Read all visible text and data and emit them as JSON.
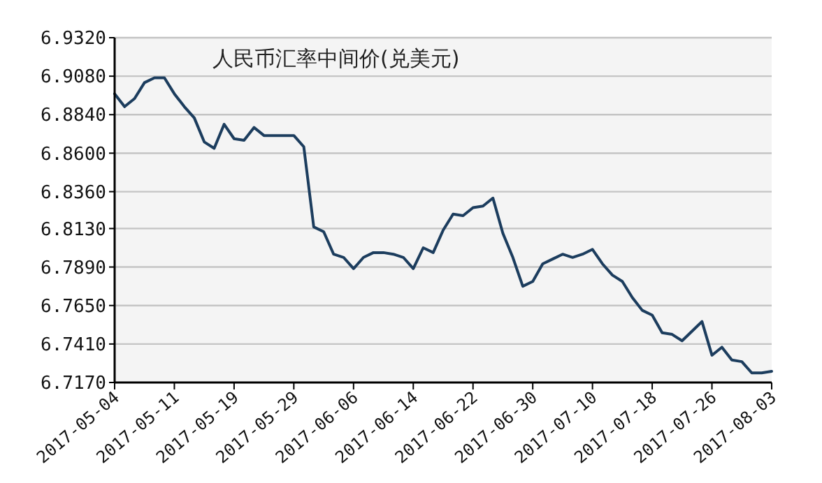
{
  "chart_data": {
    "type": "line",
    "title": "人民币汇率中间价(兑美元)",
    "categories": [
      "2017-05-04",
      null,
      null,
      null,
      null,
      null,
      "2017-05-11",
      null,
      null,
      null,
      null,
      null,
      "2017-05-19",
      null,
      null,
      null,
      null,
      null,
      "2017-05-29",
      null,
      null,
      null,
      null,
      null,
      "2017-06-06",
      null,
      null,
      null,
      null,
      null,
      "2017-06-14",
      null,
      null,
      null,
      null,
      null,
      "2017-06-22",
      null,
      null,
      null,
      null,
      null,
      "2017-06-30",
      null,
      null,
      null,
      null,
      null,
      "2017-07-10",
      null,
      null,
      null,
      null,
      null,
      "2017-07-18",
      null,
      null,
      null,
      null,
      null,
      "2017-07-26",
      null,
      null,
      null,
      null,
      null,
      "2017-08-03"
    ],
    "series": [
      {
        "color": "#1c3d5e",
        "values": [
          6.897,
          6.889,
          6.894,
          6.904,
          6.907,
          6.907,
          6.897,
          6.889,
          6.882,
          6.867,
          6.863,
          6.878,
          6.869,
          6.868,
          6.876,
          6.871,
          6.871,
          6.871,
          6.871,
          6.864,
          6.814,
          6.811,
          6.797,
          6.795,
          6.788,
          6.795,
          6.798,
          6.798,
          6.797,
          6.795,
          6.788,
          6.801,
          6.798,
          6.812,
          6.822,
          6.821,
          6.826,
          6.827,
          6.832,
          6.81,
          6.795,
          6.777,
          6.78,
          6.791,
          6.794,
          6.797,
          6.795,
          6.797,
          6.8,
          6.791,
          6.784,
          6.78,
          6.77,
          6.762,
          6.759,
          6.748,
          6.747,
          6.743,
          6.749,
          6.755,
          6.734,
          6.739,
          6.731,
          6.73,
          6.723,
          6.723,
          6.724
        ]
      }
    ],
    "ylim": [
      6.717,
      6.932
    ],
    "yticks": [
      {
        "value": 6.717,
        "label": "6.7170"
      },
      {
        "value": 6.741,
        "label": "6.7410"
      },
      {
        "value": 6.765,
        "label": "6.7650"
      },
      {
        "value": 6.789,
        "label": "6.7890"
      },
      {
        "value": 6.813,
        "label": "6.8130"
      },
      {
        "value": 6.836,
        "label": "6.8360"
      },
      {
        "value": 6.86,
        "label": "6.8600"
      },
      {
        "value": 6.884,
        "label": "6.8840"
      },
      {
        "value": 6.908,
        "label": "6.9080"
      },
      {
        "value": 6.932,
        "label": "6.9320"
      }
    ],
    "grid": "y"
  }
}
